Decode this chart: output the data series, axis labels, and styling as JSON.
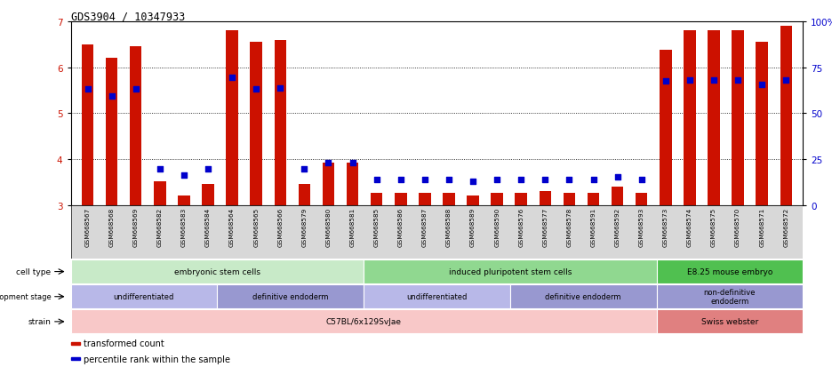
{
  "title": "GDS3904 / 10347933",
  "samples": [
    "GSM668567",
    "GSM668568",
    "GSM668569",
    "GSM668582",
    "GSM668583",
    "GSM668584",
    "GSM668564",
    "GSM668565",
    "GSM668566",
    "GSM668579",
    "GSM668580",
    "GSM668581",
    "GSM668585",
    "GSM668586",
    "GSM668587",
    "GSM668588",
    "GSM668589",
    "GSM668590",
    "GSM668576",
    "GSM668577",
    "GSM668578",
    "GSM668591",
    "GSM668592",
    "GSM668593",
    "GSM668573",
    "GSM668574",
    "GSM668575",
    "GSM668570",
    "GSM668571",
    "GSM668572"
  ],
  "bar_values": [
    6.5,
    6.2,
    6.45,
    3.52,
    3.2,
    3.47,
    6.8,
    6.55,
    6.6,
    3.47,
    3.92,
    3.92,
    3.27,
    3.27,
    3.27,
    3.27,
    3.2,
    3.27,
    3.27,
    3.3,
    3.27,
    3.27,
    3.4,
    3.27,
    6.37,
    6.8,
    6.8,
    6.8,
    6.55,
    6.9
  ],
  "percentile_values": [
    5.52,
    5.38,
    5.52,
    3.78,
    3.65,
    3.78,
    5.78,
    5.52,
    5.55,
    3.78,
    3.92,
    3.92,
    3.55,
    3.55,
    3.55,
    3.55,
    3.52,
    3.55,
    3.55,
    3.55,
    3.55,
    3.55,
    3.62,
    3.55,
    5.7,
    5.72,
    5.72,
    5.72,
    5.62,
    5.72
  ],
  "bar_color": "#cc1100",
  "dot_color": "#0000cc",
  "ylim_left": [
    3.0,
    7.0
  ],
  "ylim_right": [
    0,
    100
  ],
  "yticks_left": [
    3,
    4,
    5,
    6,
    7
  ],
  "yticks_right": [
    0,
    25,
    50,
    75,
    100
  ],
  "ytick_labels_right": [
    "0",
    "25",
    "50",
    "75",
    "100%"
  ],
  "grid_lines": [
    4,
    5,
    6
  ],
  "cell_type_groups": [
    {
      "label": "embryonic stem cells",
      "start": 0,
      "end": 12,
      "color": "#c8eac8"
    },
    {
      "label": "induced pluripotent stem cells",
      "start": 12,
      "end": 24,
      "color": "#90d890"
    },
    {
      "label": "E8.25 mouse embryo",
      "start": 24,
      "end": 30,
      "color": "#50c050"
    }
  ],
  "dev_stage_groups": [
    {
      "label": "undifferentiated",
      "start": 0,
      "end": 6,
      "color": "#b8b8e8"
    },
    {
      "label": "definitive endoderm",
      "start": 6,
      "end": 12,
      "color": "#9898d0"
    },
    {
      "label": "undifferentiated",
      "start": 12,
      "end": 18,
      "color": "#b8b8e8"
    },
    {
      "label": "definitive endoderm",
      "start": 18,
      "end": 24,
      "color": "#9898d0"
    },
    {
      "label": "non-definitive\nendoderm",
      "start": 24,
      "end": 30,
      "color": "#9898d0"
    }
  ],
  "strain_groups": [
    {
      "label": "C57BL/6x129SvJae",
      "start": 0,
      "end": 24,
      "color": "#f8c8c8"
    },
    {
      "label": "Swiss webster",
      "start": 24,
      "end": 30,
      "color": "#e08080"
    }
  ],
  "row_label_names": [
    "cell type",
    "development stage",
    "strain"
  ],
  "legend_items": [
    {
      "label": "transformed count",
      "color": "#cc1100"
    },
    {
      "label": "percentile rank within the sample",
      "color": "#0000cc"
    }
  ]
}
